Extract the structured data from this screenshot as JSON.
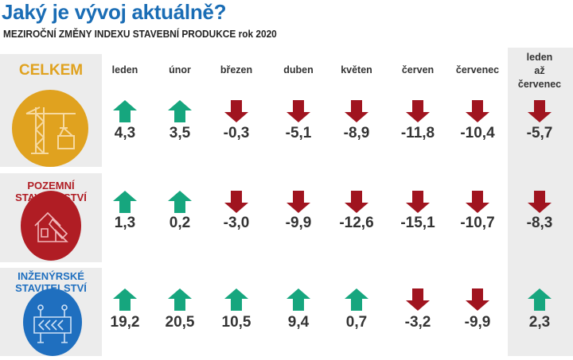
{
  "header": {
    "title": "Jaký je vývoj aktuálně?",
    "subtitle": "MEZIROČNÍ ZMĚNY INDEXU STAVEBNÍ PRODUKCE  rok 2020"
  },
  "colors": {
    "up": "#16a67e",
    "down": "#a0141f",
    "celkem": "#e0a21f",
    "pozemni": "#b01d24",
    "inzenyrske": "#1f6fbf",
    "panel": "#ececec"
  },
  "chart_data": {
    "type": "table",
    "title": "MEZIROČNÍ ZMĚNY INDEXU STAVEBNÍ PRODUKCE  rok 2020",
    "columns": [
      "leden",
      "únor",
      "březen",
      "duben",
      "květen",
      "červen",
      "červenec"
    ],
    "summary_column": [
      "leden",
      "až",
      "červenec"
    ],
    "rows": [
      {
        "name": "CELKEM",
        "label_lines": [
          "CELKEM"
        ],
        "icon": "crane-icon",
        "values": [
          "4,3",
          "3,5",
          "-0,3",
          "-5,1",
          "-8,9",
          "-11,8",
          "-10,4"
        ],
        "summary": "-5,7"
      },
      {
        "name": "POZEMNÍ STAVITELSTVÍ",
        "label_lines": [
          "POZEMNÍ",
          "STAVITELSTVÍ"
        ],
        "icon": "house-plan-icon",
        "values": [
          "1,3",
          "0,2",
          "-3,0",
          "-9,9",
          "-12,6",
          "-15,1",
          "-10,7"
        ],
        "summary": "-8,3"
      },
      {
        "name": "INŽENÝRSKÉ STAVITELSTVÍ",
        "label_lines": [
          "INŽENÝRSKÉ",
          "STAVITELSTVÍ"
        ],
        "icon": "road-barrier-icon",
        "values": [
          "19,2",
          "20,5",
          "10,5",
          "9,4",
          "0,7",
          "-3,2",
          "-9,9"
        ],
        "summary": "2,3"
      }
    ]
  }
}
